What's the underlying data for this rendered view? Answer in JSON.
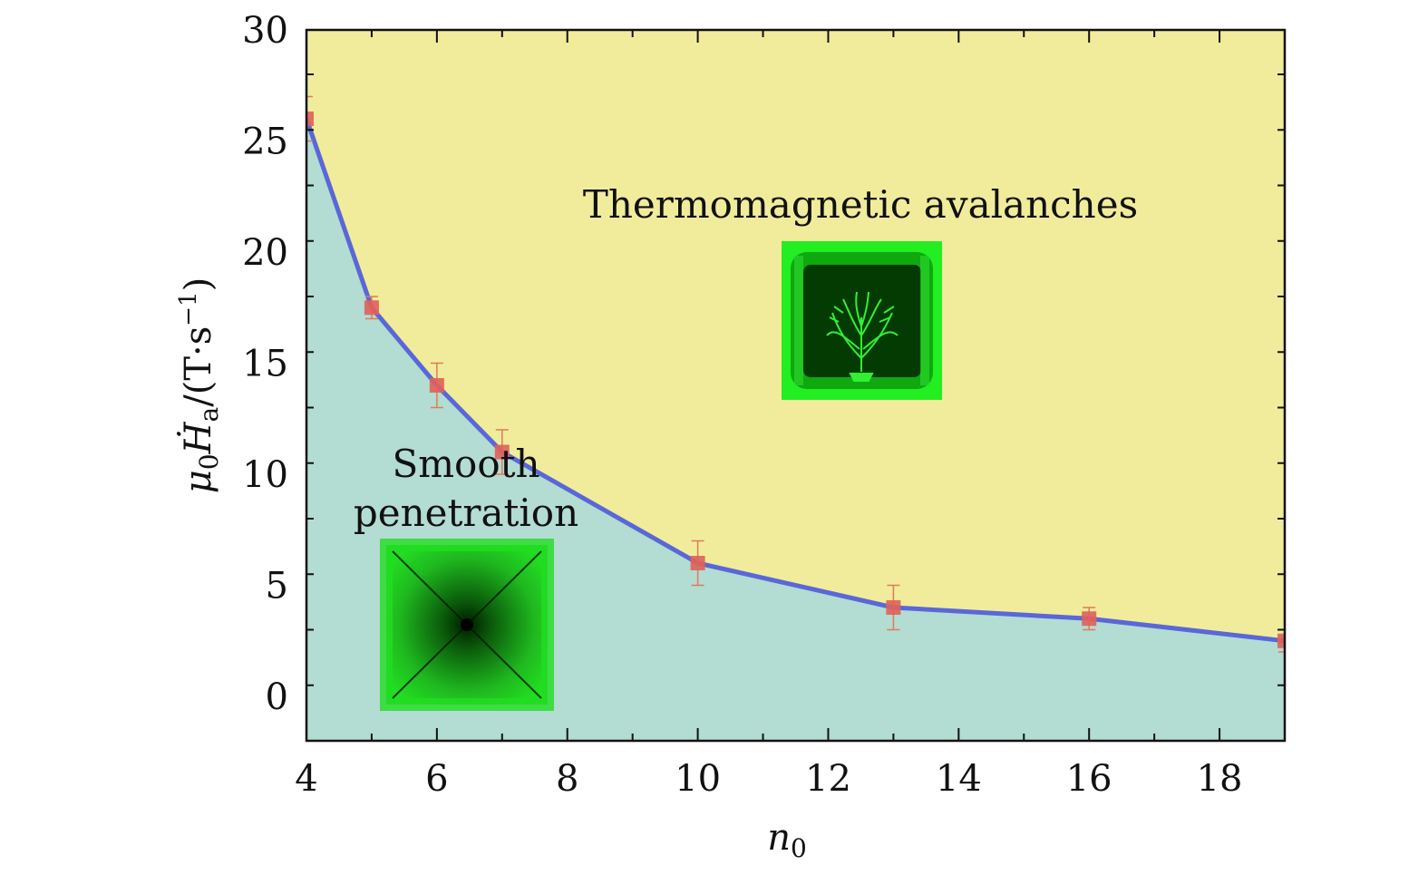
{
  "chart_data": {
    "type": "area",
    "xlabel_symbol": "n",
    "xlabel_sub": "0",
    "ylabel_parts": {
      "mu": "μ",
      "mu_sub": "0",
      "H": "Ḣ",
      "H_sub": "a",
      "units": "/(T·s",
      "exp": "−1",
      "close": ")"
    },
    "xlim": [
      4,
      19
    ],
    "ylim": [
      -2,
      30
    ],
    "xticks": [
      4,
      6,
      8,
      10,
      12,
      14,
      16,
      18
    ],
    "yticks": [
      0,
      5,
      10,
      15,
      20,
      25,
      30
    ],
    "series": [
      {
        "x": [
          4,
          5,
          6,
          7,
          10,
          13,
          16,
          19
        ],
        "y": [
          26,
          17.5,
          14,
          11,
          6,
          4,
          3.5,
          2.5
        ],
        "yerr": [
          1,
          0.5,
          1,
          1,
          1,
          1,
          0.5,
          0.5
        ]
      }
    ],
    "annotations": [
      {
        "text": "Thermomagnetic avalanches"
      },
      {
        "text": "Smooth"
      },
      {
        "text": "penetration"
      }
    ],
    "colors": {
      "upper_region": "#f1ec9b",
      "lower_region": "#b3dcd2",
      "line": "#5a67d8",
      "marker": "#e0605a",
      "errorbar": "#e07a5a"
    }
  }
}
